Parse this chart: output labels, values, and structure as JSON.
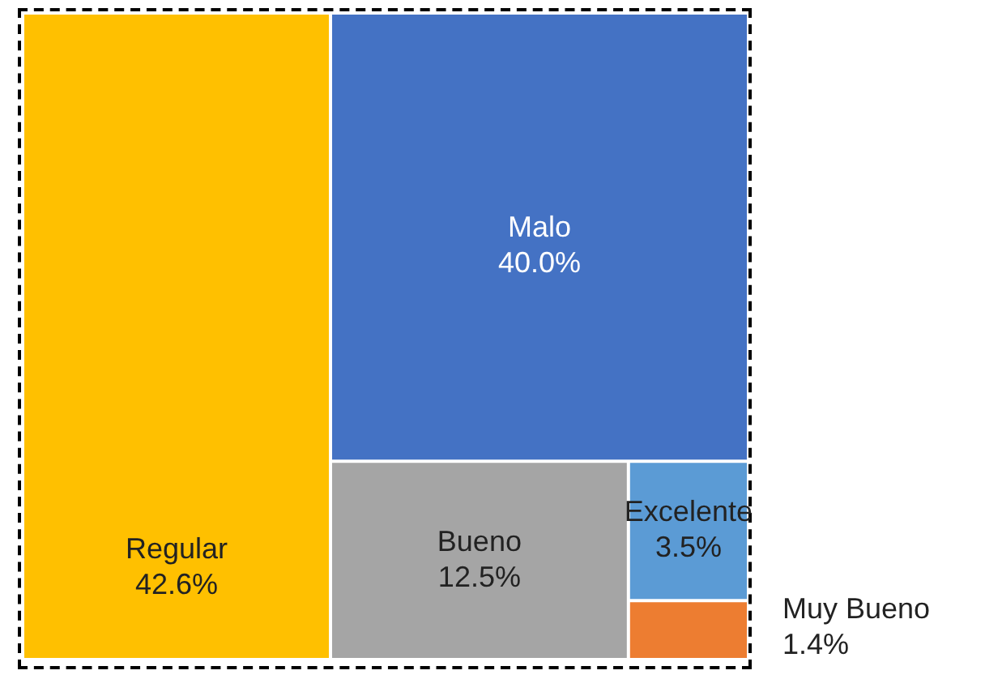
{
  "chart_data": {
    "type": "other",
    "categories": [
      "Regular",
      "Malo",
      "Bueno",
      "Excelente",
      "Muy Bueno"
    ],
    "values": [
      42.6,
      40.0,
      12.5,
      3.5,
      1.4
    ],
    "value_labels": [
      "42.6%",
      "40.0%",
      "12.5%",
      "3.5%",
      "1.4%"
    ],
    "colors": [
      "#ffc000",
      "#4472c4",
      "#a5a5a5",
      "#5b9bd5",
      "#ed7d31"
    ]
  }
}
